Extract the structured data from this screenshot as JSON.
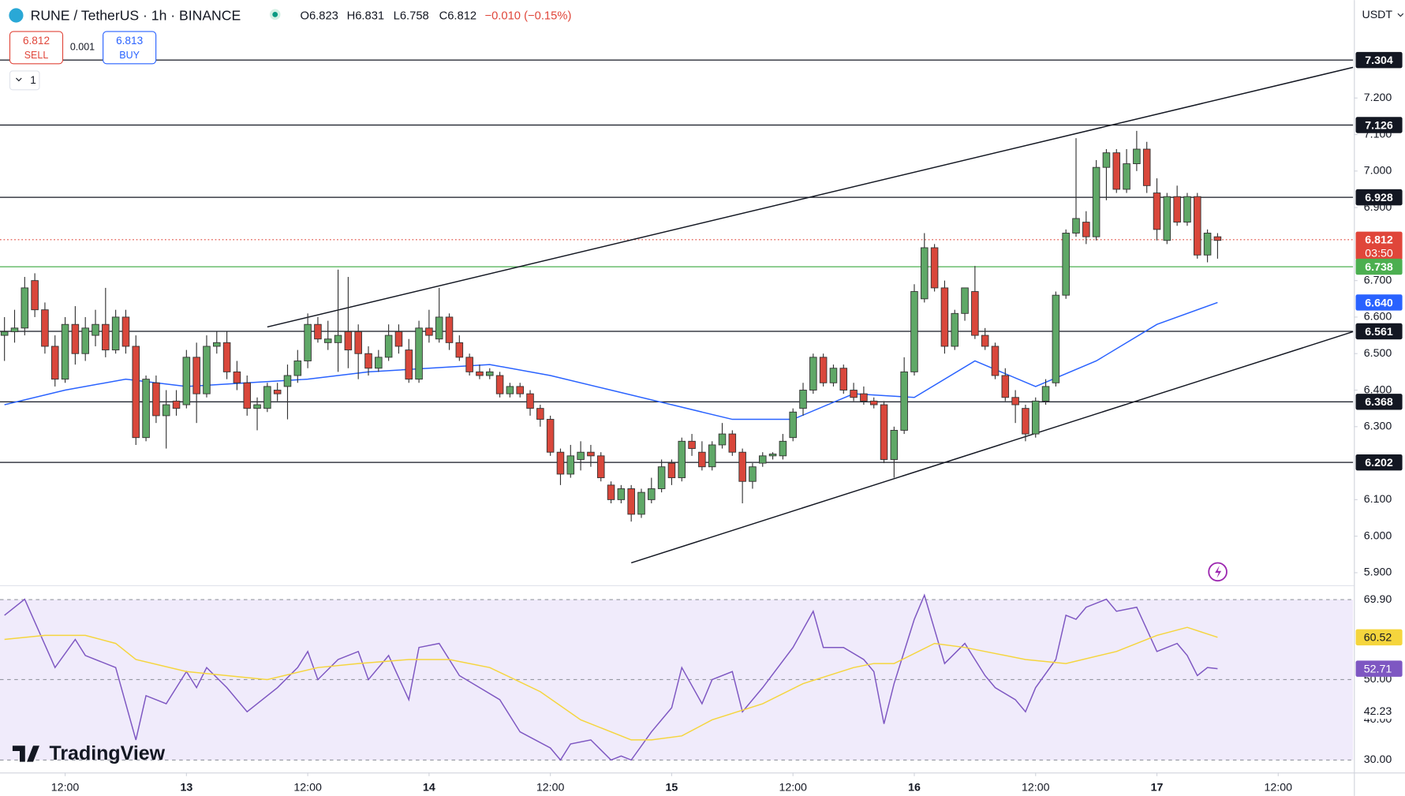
{
  "header": {
    "title": "RUNE / TetherUS · 1h · BINANCE",
    "ohlc": [
      "O6.823",
      "H6.831",
      "L6.758",
      "C6.812",
      "−0.010 (−0.15%)"
    ],
    "currency": "USDT"
  },
  "trade": {
    "sell_price": 6.812,
    "sell": "SELL",
    "spread": 0.001,
    "buy_price": 6.813,
    "buy": "BUY",
    "lots": 1
  },
  "brand": "TradingView",
  "chart_data": [
    {
      "type": "candlestick",
      "up_color": "#5fa867",
      "down_color": "#d9473b",
      "xlim": [
        -0.443,
        133.4
      ],
      "ylim": [
        5.868,
        7.468
      ],
      "xticks": [
        {
          "value": 6,
          "label": "12:00"
        },
        {
          "value": 18,
          "label": "13"
        },
        {
          "value": 30,
          "label": "12:00"
        },
        {
          "value": 42,
          "label": "14"
        },
        {
          "value": 54,
          "label": "12:00"
        },
        {
          "value": 66,
          "label": "15"
        },
        {
          "value": 78,
          "label": "12:00"
        },
        {
          "value": 90,
          "label": "16"
        },
        {
          "value": 102,
          "label": "12:00"
        },
        {
          "value": 114,
          "label": "17"
        },
        {
          "value": 126,
          "label": "12:00"
        }
      ],
      "yticks": [
        {
          "value": 7.2,
          "label": "7.200"
        },
        {
          "value": 7.1,
          "label": "7.100"
        },
        {
          "value": 7.0,
          "label": "7.000"
        },
        {
          "value": 6.9,
          "label": "6.900"
        },
        {
          "value": 6.7,
          "label": "6.700"
        },
        {
          "value": 6.6,
          "label": "6.600"
        },
        {
          "value": 6.5,
          "label": "6.500"
        },
        {
          "value": 6.4,
          "label": "6.400"
        },
        {
          "value": 6.3,
          "label": "6.300"
        },
        {
          "value": 6.1,
          "label": "6.100"
        },
        {
          "value": 6.0,
          "label": "6.000"
        },
        {
          "value": 5.9,
          "label": "5.900"
        }
      ],
      "candles": [
        [
          6.55,
          6.6,
          6.48,
          6.56
        ],
        [
          6.56,
          6.62,
          6.53,
          6.57
        ],
        [
          6.57,
          6.71,
          6.55,
          6.68
        ],
        [
          6.7,
          6.72,
          6.6,
          6.62
        ],
        [
          6.62,
          6.64,
          6.5,
          6.52
        ],
        [
          6.52,
          6.55,
          6.41,
          6.43
        ],
        [
          6.43,
          6.6,
          6.42,
          6.58
        ],
        [
          6.58,
          6.63,
          6.47,
          6.5
        ],
        [
          6.5,
          6.6,
          6.48,
          6.57
        ],
        [
          6.55,
          6.62,
          6.52,
          6.58
        ],
        [
          6.58,
          6.68,
          6.49,
          6.51
        ],
        [
          6.51,
          6.62,
          6.5,
          6.6
        ],
        [
          6.6,
          6.62,
          6.5,
          6.52
        ],
        [
          6.52,
          6.55,
          6.25,
          6.27
        ],
        [
          6.27,
          6.44,
          6.26,
          6.43
        ],
        [
          6.42,
          6.44,
          6.31,
          6.33
        ],
        [
          6.33,
          6.4,
          6.24,
          6.36
        ],
        [
          6.37,
          6.4,
          6.33,
          6.35
        ],
        [
          6.36,
          6.51,
          6.35,
          6.49
        ],
        [
          6.49,
          6.53,
          6.31,
          6.39
        ],
        [
          6.39,
          6.55,
          6.38,
          6.52
        ],
        [
          6.52,
          6.56,
          6.5,
          6.53
        ],
        [
          6.53,
          6.56,
          6.43,
          6.45
        ],
        [
          6.45,
          6.48,
          6.4,
          6.42
        ],
        [
          6.42,
          6.44,
          6.33,
          6.35
        ],
        [
          6.35,
          6.38,
          6.29,
          6.36
        ],
        [
          6.35,
          6.42,
          6.34,
          6.41
        ],
        [
          6.4,
          6.42,
          6.37,
          6.39
        ],
        [
          6.41,
          6.47,
          6.32,
          6.44
        ],
        [
          6.44,
          6.51,
          6.42,
          6.48
        ],
        [
          6.48,
          6.61,
          6.46,
          6.58
        ],
        [
          6.58,
          6.6,
          6.53,
          6.54
        ],
        [
          6.53,
          6.59,
          6.51,
          6.54
        ],
        [
          6.53,
          6.73,
          6.45,
          6.55
        ],
        [
          6.56,
          6.71,
          6.46,
          6.51
        ],
        [
          6.56,
          6.58,
          6.43,
          6.5
        ],
        [
          6.5,
          6.52,
          6.44,
          6.46
        ],
        [
          6.46,
          6.51,
          6.45,
          6.49
        ],
        [
          6.49,
          6.58,
          6.48,
          6.55
        ],
        [
          6.56,
          6.58,
          6.5,
          6.52
        ],
        [
          6.51,
          6.54,
          6.42,
          6.43
        ],
        [
          6.43,
          6.59,
          6.42,
          6.57
        ],
        [
          6.57,
          6.62,
          6.53,
          6.55
        ],
        [
          6.54,
          6.68,
          6.53,
          6.6
        ],
        [
          6.6,
          6.61,
          6.51,
          6.53
        ],
        [
          6.53,
          6.55,
          6.48,
          6.49
        ],
        [
          6.49,
          6.5,
          6.44,
          6.45
        ],
        [
          6.45,
          6.47,
          6.43,
          6.44
        ],
        [
          6.44,
          6.46,
          6.43,
          6.45
        ],
        [
          6.44,
          6.45,
          6.38,
          6.39
        ],
        [
          6.39,
          6.42,
          6.38,
          6.41
        ],
        [
          6.41,
          6.42,
          6.38,
          6.39
        ],
        [
          6.39,
          6.4,
          6.33,
          6.35
        ],
        [
          6.35,
          6.36,
          6.3,
          6.32
        ],
        [
          6.32,
          6.33,
          6.22,
          6.23
        ],
        [
          6.23,
          6.24,
          6.14,
          6.17
        ],
        [
          6.17,
          6.25,
          6.16,
          6.22
        ],
        [
          6.21,
          6.26,
          6.18,
          6.23
        ],
        [
          6.23,
          6.25,
          6.19,
          6.22
        ],
        [
          6.22,
          6.23,
          6.15,
          6.16
        ],
        [
          6.14,
          6.15,
          6.09,
          6.1
        ],
        [
          6.1,
          6.14,
          6.09,
          6.13
        ],
        [
          6.13,
          6.14,
          6.04,
          6.06
        ],
        [
          6.06,
          6.13,
          6.05,
          6.12
        ],
        [
          6.1,
          6.16,
          6.09,
          6.13
        ],
        [
          6.13,
          6.21,
          6.12,
          6.19
        ],
        [
          6.2,
          6.21,
          6.14,
          6.16
        ],
        [
          6.16,
          6.27,
          6.15,
          6.26
        ],
        [
          6.26,
          6.28,
          6.22,
          6.24
        ],
        [
          6.23,
          6.26,
          6.18,
          6.19
        ],
        [
          6.19,
          6.26,
          6.18,
          6.25
        ],
        [
          6.25,
          6.31,
          6.24,
          6.28
        ],
        [
          6.28,
          6.29,
          6.22,
          6.23
        ],
        [
          6.23,
          6.24,
          6.09,
          6.15
        ],
        [
          6.15,
          6.2,
          6.13,
          6.19
        ],
        [
          6.2,
          6.23,
          6.19,
          6.22
        ],
        [
          6.22,
          6.23,
          6.21,
          6.225
        ],
        [
          6.22,
          6.28,
          6.21,
          6.26
        ],
        [
          6.27,
          6.35,
          6.26,
          6.34
        ],
        [
          6.35,
          6.42,
          6.33,
          6.4
        ],
        [
          6.4,
          6.5,
          6.39,
          6.49
        ],
        [
          6.49,
          6.5,
          6.41,
          6.42
        ],
        [
          6.42,
          6.47,
          6.41,
          6.46
        ],
        [
          6.46,
          6.47,
          6.39,
          6.4
        ],
        [
          6.4,
          6.42,
          6.37,
          6.38
        ],
        [
          6.39,
          6.41,
          6.36,
          6.37
        ],
        [
          6.37,
          6.38,
          6.35,
          6.36
        ],
        [
          6.36,
          6.37,
          6.2,
          6.21
        ],
        [
          6.21,
          6.3,
          6.16,
          6.29
        ],
        [
          6.29,
          6.49,
          6.28,
          6.45
        ],
        [
          6.45,
          6.69,
          6.44,
          6.67
        ],
        [
          6.65,
          6.83,
          6.64,
          6.79
        ],
        [
          6.79,
          6.8,
          6.67,
          6.68
        ],
        [
          6.68,
          6.7,
          6.5,
          6.52
        ],
        [
          6.52,
          6.62,
          6.51,
          6.61
        ],
        [
          6.61,
          6.68,
          6.59,
          6.68
        ],
        [
          6.67,
          6.74,
          6.54,
          6.55
        ],
        [
          6.55,
          6.57,
          6.51,
          6.52
        ],
        [
          6.52,
          6.53,
          6.43,
          6.44
        ],
        [
          6.44,
          6.46,
          6.37,
          6.38
        ],
        [
          6.38,
          6.4,
          6.31,
          6.36
        ],
        [
          6.35,
          6.36,
          6.26,
          6.28
        ],
        [
          6.28,
          6.38,
          6.27,
          6.37
        ],
        [
          6.37,
          6.43,
          6.36,
          6.41
        ],
        [
          6.42,
          6.67,
          6.41,
          6.66
        ],
        [
          6.66,
          6.84,
          6.65,
          6.83
        ],
        [
          6.83,
          7.09,
          6.82,
          6.87
        ],
        [
          6.86,
          6.89,
          6.8,
          6.82
        ],
        [
          6.82,
          7.03,
          6.81,
          7.01
        ],
        [
          7.01,
          7.06,
          6.92,
          7.05
        ],
        [
          7.05,
          7.06,
          6.94,
          6.95
        ],
        [
          6.95,
          7.06,
          6.94,
          7.02
        ],
        [
          7.02,
          7.11,
          7.0,
          7.06
        ],
        [
          7.06,
          7.08,
          6.94,
          6.96
        ],
        [
          6.94,
          6.98,
          6.81,
          6.84
        ],
        [
          6.81,
          6.94,
          6.8,
          6.93
        ],
        [
          6.93,
          6.96,
          6.85,
          6.86
        ],
        [
          6.86,
          6.94,
          6.85,
          6.93
        ],
        [
          6.93,
          6.94,
          6.76,
          6.77
        ],
        [
          6.77,
          6.84,
          6.75,
          6.83
        ],
        [
          6.82,
          6.83,
          6.76,
          6.81
        ]
      ],
      "ma": {
        "color": "#2962ff",
        "x": [
          0,
          6,
          12,
          18,
          24,
          30,
          36,
          42,
          48,
          54,
          60,
          66,
          72,
          78,
          84,
          90,
          96,
          102,
          108,
          114,
          120
        ],
        "values": [
          6.36,
          6.4,
          6.43,
          6.41,
          6.42,
          6.43,
          6.45,
          6.46,
          6.47,
          6.44,
          6.4,
          6.36,
          6.32,
          6.32,
          6.39,
          6.38,
          6.48,
          6.41,
          6.48,
          6.58,
          6.64
        ]
      },
      "levels": [
        {
          "value": 7.304,
          "color": "#131722"
        },
        {
          "value": 7.126,
          "color": "#131722"
        },
        {
          "value": 6.928,
          "color": "#131722"
        },
        {
          "value": 6.812,
          "color": "#e0463a",
          "style": "dotted",
          "countdown": "03:50"
        },
        {
          "value": 6.738,
          "color": "#4caf50"
        },
        {
          "value": 6.64,
          "label": "6.640",
          "color": "#2962ff",
          "line": false
        },
        {
          "value": 6.561,
          "color": "#131722"
        },
        {
          "value": 6.368,
          "color": "#131722"
        },
        {
          "value": 6.202,
          "color": "#131722"
        }
      ],
      "trendlines": [
        {
          "x": [
            26,
            133.4
          ],
          "y": [
            6.573,
            7.284
          ]
        },
        {
          "x": [
            62,
            133.4
          ],
          "y": [
            5.927,
            6.56
          ]
        }
      ]
    },
    {
      "type": "line",
      "xlim": [
        -0.443,
        133.4
      ],
      "ylim": [
        26.88,
        73.02
      ],
      "band": [
        30,
        69.9
      ],
      "band_color": "#f0ebfb",
      "yticks": [
        {
          "value": 69.9,
          "label": "69.90"
        },
        {
          "value": 50,
          "label": "50.00"
        },
        {
          "value": 40,
          "label": "40.00"
        },
        {
          "value": 30,
          "label": "30.00"
        }
      ],
      "series": [
        {
          "color": "#7e57c2",
          "x": [
            0,
            2,
            5,
            7,
            8,
            11,
            13,
            14,
            16,
            18,
            19,
            20,
            22,
            24,
            27,
            29,
            30,
            31,
            33,
            35,
            36,
            38,
            40,
            41,
            43,
            45,
            47,
            49,
            51,
            54,
            55,
            56,
            58,
            60,
            61,
            62,
            64,
            66,
            67,
            69,
            70,
            72,
            73,
            75,
            78,
            80,
            81,
            83,
            85,
            86,
            87,
            88,
            90,
            91,
            93,
            95,
            97,
            98,
            100,
            101,
            102,
            104,
            105,
            106,
            107,
            109,
            110,
            112,
            114,
            116,
            117,
            118,
            119,
            120
          ],
          "values": [
            66,
            70,
            53,
            60,
            56,
            53,
            35,
            46,
            44,
            52,
            48,
            53,
            48,
            42,
            48,
            53,
            57,
            50,
            55,
            57,
            50,
            56,
            45,
            58,
            59,
            51,
            48,
            45,
            37,
            33,
            30,
            34,
            35,
            30,
            31,
            30,
            37,
            43,
            53,
            44,
            50,
            52,
            42,
            48,
            58,
            67,
            58,
            58,
            55,
            52,
            39,
            49,
            65,
            71,
            54,
            59,
            51,
            48,
            45,
            42,
            48,
            55,
            66,
            65,
            68,
            70,
            67,
            68,
            57,
            59,
            56,
            51,
            53,
            52.71
          ]
        },
        {
          "color": "#f5d53d",
          "x": [
            0,
            4,
            8,
            11,
            13,
            18,
            22,
            26,
            31,
            35,
            40,
            44,
            48,
            53,
            57,
            62,
            64,
            67,
            70,
            75,
            79,
            84,
            86,
            88,
            92,
            95,
            97,
            101,
            105,
            110,
            114,
            117,
            120
          ],
          "values": [
            60,
            61,
            61,
            59,
            55,
            52,
            51,
            50,
            53,
            54,
            55,
            55,
            53,
            47,
            40,
            35,
            35,
            36,
            40,
            44,
            49,
            53,
            54,
            54,
            59,
            58,
            57,
            55,
            54,
            57,
            61,
            63,
            60.52
          ]
        }
      ],
      "value_markers": [
        {
          "value": 60.52,
          "color": "#f5d53d",
          "text_color": "#131722"
        },
        {
          "value": 52.71,
          "color": "#7e57c2",
          "text_color": "#ffffff"
        },
        {
          "value": 42.23,
          "color": "#ffffff",
          "text_color": "#131722"
        }
      ]
    }
  ]
}
